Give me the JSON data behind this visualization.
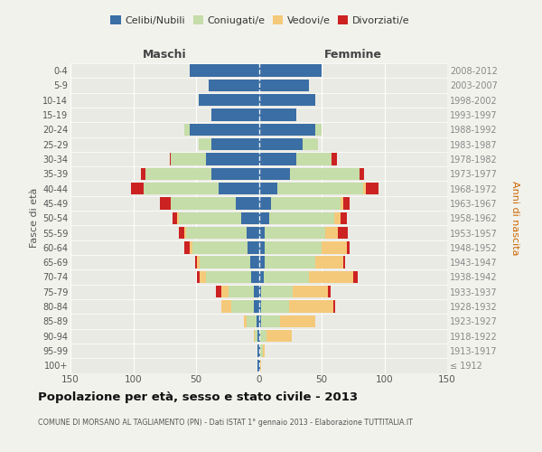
{
  "age_groups": [
    "100+",
    "95-99",
    "90-94",
    "85-89",
    "80-84",
    "75-79",
    "70-74",
    "65-69",
    "60-64",
    "55-59",
    "50-54",
    "45-49",
    "40-44",
    "35-39",
    "30-34",
    "25-29",
    "20-24",
    "15-19",
    "10-14",
    "5-9",
    "0-4"
  ],
  "birth_years": [
    "≤ 1912",
    "1913-1917",
    "1918-1922",
    "1923-1927",
    "1928-1932",
    "1933-1937",
    "1938-1942",
    "1943-1947",
    "1948-1952",
    "1953-1957",
    "1958-1962",
    "1963-1967",
    "1968-1972",
    "1973-1977",
    "1978-1982",
    "1983-1987",
    "1988-1992",
    "1993-1997",
    "1998-2002",
    "2003-2007",
    "2008-2012"
  ],
  "male": {
    "celibi": [
      1,
      1,
      1,
      2,
      4,
      4,
      6,
      7,
      9,
      10,
      14,
      18,
      32,
      38,
      42,
      38,
      55,
      38,
      48,
      40,
      55
    ],
    "coniugati": [
      0,
      0,
      2,
      8,
      18,
      20,
      36,
      40,
      44,
      48,
      50,
      52,
      60,
      52,
      28,
      10,
      4,
      0,
      0,
      0,
      0
    ],
    "vedovi": [
      0,
      0,
      1,
      2,
      8,
      6,
      5,
      2,
      2,
      1,
      1,
      0,
      0,
      0,
      0,
      0,
      0,
      0,
      0,
      0,
      0
    ],
    "divorziati": [
      0,
      0,
      0,
      0,
      0,
      4,
      2,
      2,
      4,
      5,
      4,
      9,
      10,
      4,
      1,
      0,
      0,
      0,
      0,
      0,
      0
    ]
  },
  "female": {
    "nubili": [
      1,
      1,
      1,
      2,
      2,
      2,
      4,
      5,
      5,
      5,
      8,
      10,
      15,
      25,
      30,
      35,
      45,
      30,
      45,
      40,
      50
    ],
    "coniugate": [
      0,
      2,
      5,
      15,
      22,
      25,
      36,
      40,
      45,
      48,
      52,
      55,
      68,
      55,
      28,
      12,
      5,
      0,
      0,
      0,
      0
    ],
    "vedove": [
      1,
      2,
      20,
      28,
      35,
      28,
      35,
      22,
      20,
      10,
      5,
      2,
      2,
      0,
      0,
      0,
      0,
      0,
      0,
      0,
      0
    ],
    "divorziate": [
      0,
      0,
      0,
      0,
      2,
      2,
      4,
      2,
      2,
      8,
      5,
      5,
      10,
      4,
      4,
      0,
      0,
      0,
      0,
      0,
      0
    ]
  },
  "colors": {
    "celibi_nubili": "#3A6EA5",
    "coniugati": "#C5DDA8",
    "vedovi": "#F5C97A",
    "divorziati": "#CC2222"
  },
  "title": "Popolazione per età, sesso e stato civile - 2013",
  "subtitle": "COMUNE DI MORSANO AL TAGLIAMENTO (PN) - Dati ISTAT 1° gennaio 2013 - Elaborazione TUTTITALIA.IT",
  "label_maschi": "Maschi",
  "label_femmine": "Femmine",
  "ylabel_left": "Fasce di età",
  "ylabel_right": "Anni di nascita",
  "xlim": 150,
  "legend_labels": [
    "Celibi/Nubili",
    "Coniugati/e",
    "Vedovi/e",
    "Divorziati/e"
  ],
  "bg_color": "#f2f2ed",
  "plot_bg": "#eaeae4"
}
